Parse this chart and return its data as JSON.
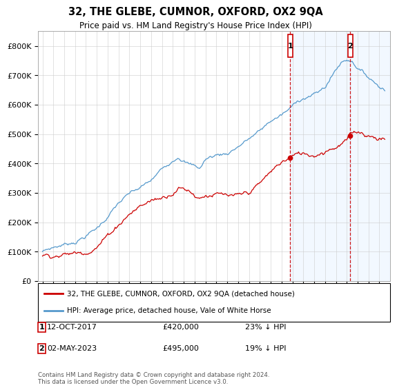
{
  "title": "32, THE GLEBE, CUMNOR, OXFORD, OX2 9QA",
  "subtitle": "Price paid vs. HM Land Registry's House Price Index (HPI)",
  "ylim": [
    0,
    850000
  ],
  "yticks": [
    0,
    100000,
    200000,
    300000,
    400000,
    500000,
    600000,
    700000,
    800000
  ],
  "ytick_labels": [
    "£0",
    "£100K",
    "£200K",
    "£300K",
    "£400K",
    "£500K",
    "£600K",
    "£700K",
    "£800K"
  ],
  "line1_color": "#cc0000",
  "line2_color": "#5599cc",
  "line1_label": "32, THE GLEBE, CUMNOR, OXFORD, OX2 9QA (detached house)",
  "line2_label": "HPI: Average price, detached house, Vale of White Horse",
  "event1_x": 2017.79,
  "event1_y": 420000,
  "event1_label": "1",
  "event1_text": "12-OCT-2017",
  "event1_price": "£420,000",
  "event1_pct": "23% ↓ HPI",
  "event2_x": 2023.33,
  "event2_y": 495000,
  "event2_label": "2",
  "event2_text": "02-MAY-2023",
  "event2_price": "£495,000",
  "event2_pct": "19% ↓ HPI",
  "background_color": "#ffffff",
  "grid_color": "#cccccc",
  "shade_color": "#ddeeff",
  "event_line_color": "#cc0000",
  "footer": "Contains HM Land Registry data © Crown copyright and database right 2024.\nThis data is licensed under the Open Government Licence v3.0.",
  "xlim_start": 1994.6,
  "xlim_end": 2027.0,
  "xticks_start": 1995,
  "xticks_end": 2027
}
